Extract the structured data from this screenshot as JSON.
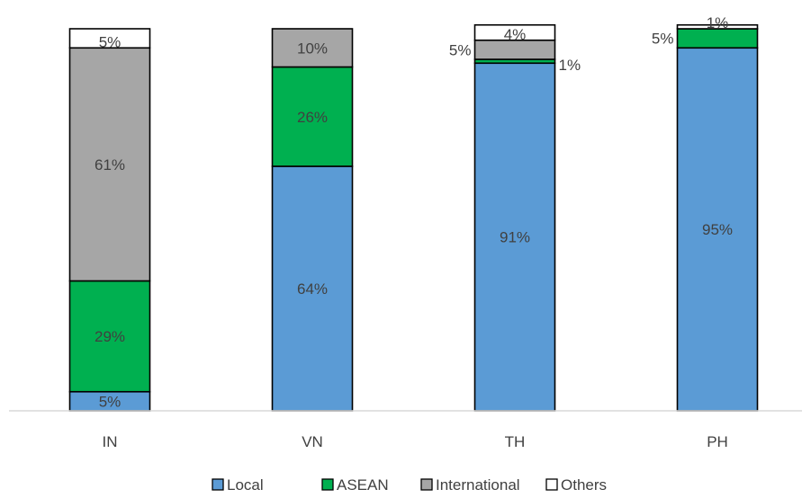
{
  "chart_data": {
    "type": "bar",
    "stacked": true,
    "categories": [
      "IN",
      "VN",
      "TH",
      "PH"
    ],
    "series": [
      {
        "name": "Local",
        "color": "#5b9bd5",
        "values": [
          5,
          64,
          91,
          95
        ],
        "labels": [
          "5%",
          "64%",
          "91%",
          "95%"
        ]
      },
      {
        "name": "ASEAN",
        "color": "#00b050",
        "values": [
          29,
          26,
          1,
          5
        ],
        "labels": [
          "29%",
          "26%",
          "1%",
          "5%"
        ]
      },
      {
        "name": "International",
        "color": "#a6a6a6",
        "values": [
          61,
          10,
          5,
          0
        ],
        "labels": [
          "61%",
          "10%",
          "5%",
          ""
        ]
      },
      {
        "name": "Others",
        "color": "#ffffff",
        "values": [
          5,
          0,
          4,
          1
        ],
        "labels": [
          "5%",
          "",
          "4%",
          "1%"
        ]
      }
    ],
    "ylim": [
      0,
      100
    ],
    "grid": false,
    "legend_position": "bottom"
  }
}
